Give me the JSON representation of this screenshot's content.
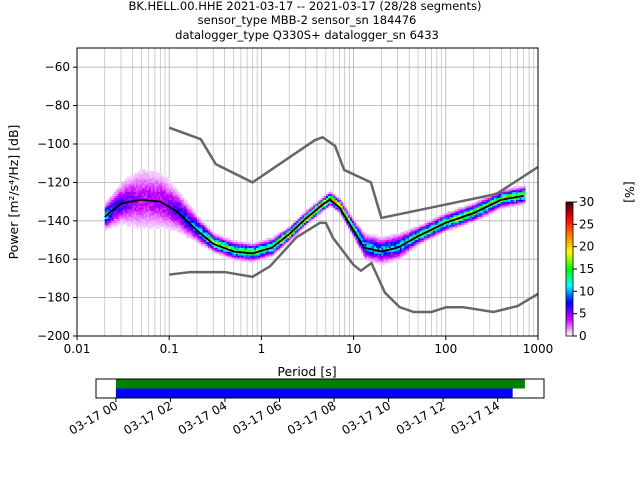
{
  "title": {
    "line1": "BK.HELL.00.HHE   2021-03-17 -- 2021-03-17  (28/28 segments)",
    "line2": "sensor_type MBB-2 sensor_sn 184476",
    "line3": "datalogger_type Q330S+ datalogger_sn 6433"
  },
  "chart_data": [
    {
      "type": "heatmap",
      "name": "ppsd",
      "xlabel": "Period [s]",
      "ylabel": "Power [m²/s⁴/Hz] [dB]",
      "xscale": "log",
      "xlim": [
        0.01,
        1000
      ],
      "ylim": [
        -200,
        -50
      ],
      "xticks": [
        0.01,
        0.1,
        1,
        10,
        100,
        1000
      ],
      "xtick_labels": [
        "0.01",
        "0.1",
        "1",
        "10",
        "100",
        "1000"
      ],
      "yticks": [
        -200,
        -180,
        -160,
        -140,
        -120,
        -100,
        -80,
        -60
      ],
      "ytick_labels": [
        "−200",
        "−180",
        "−160",
        "−140",
        "−120",
        "−100",
        "−80",
        "−60"
      ],
      "grid": true,
      "median": {
        "period": [
          0.02,
          0.03,
          0.05,
          0.08,
          0.12,
          0.2,
          0.3,
          0.5,
          0.8,
          1.3,
          2,
          3,
          4.5,
          5.5,
          7,
          10,
          13,
          20,
          30,
          50,
          100,
          200,
          400,
          700
        ],
        "db": [
          -138,
          -131,
          -129,
          -130,
          -135,
          -145,
          -152,
          -156,
          -157,
          -154,
          -147,
          -139,
          -132,
          -129,
          -133,
          -145,
          -154,
          -156,
          -154,
          -148,
          -141,
          -136,
          -129,
          -127
        ],
        "spread_db": [
          3,
          5,
          8,
          7,
          5,
          3,
          2,
          2,
          2,
          2,
          1.5,
          1.5,
          1.5,
          1.5,
          1.5,
          2,
          3,
          3,
          3,
          2,
          2,
          2,
          2,
          2
        ]
      },
      "nhnm": {
        "period": [
          0.1,
          0.22,
          0.32,
          0.8,
          3.8,
          4.6,
          6.3,
          7.9,
          15.4,
          20,
          354,
          1000
        ],
        "db": [
          -91.5,
          -97.5,
          -110.5,
          -120,
          -98,
          -96.5,
          -101,
          -113.5,
          -120,
          -138.5,
          -126,
          -112
        ]
      },
      "nlnm": {
        "period": [
          0.1,
          0.17,
          0.4,
          0.8,
          1.24,
          2.4,
          4.3,
          5,
          6,
          10,
          12,
          15.6,
          21.9,
          31.6,
          45,
          70,
          101,
          154,
          328,
          600,
          1000
        ],
        "db": [
          -168,
          -166.7,
          -166.7,
          -169.2,
          -163.7,
          -148.6,
          -141.1,
          -141.1,
          -149,
          -163,
          -166,
          -162,
          -177.5,
          -185,
          -187.5,
          -187.5,
          -185,
          -185,
          -187.5,
          -184.4,
          -178
        ]
      },
      "colorbar": {
        "label": "[%]",
        "range": [
          0,
          30
        ],
        "ticks": [
          "0",
          "5",
          "10",
          "15",
          "20",
          "25",
          "30"
        ],
        "colors": [
          "#ffffff",
          "#d000ff",
          "#0000ff",
          "#00ffff",
          "#00ff00",
          "#ffff00",
          "#ff8000",
          "#ff0000",
          "#400000"
        ]
      },
      "colors": {
        "noise_model": "#666666",
        "median": "#000000"
      }
    },
    {
      "type": "bar",
      "name": "data-coverage",
      "xlim_hours": [
        -0.73,
        15.7
      ],
      "xtick_labels": [
        "03-17 00",
        "03-17 02",
        "03-17 04",
        "03-17 06",
        "03-17 08",
        "03-17 10",
        "03-17 12",
        "03-17 14"
      ],
      "xtick_hours": [
        0,
        2,
        4,
        6,
        8,
        10,
        12,
        14
      ],
      "series": [
        {
          "name": "data-available",
          "start_hour": 0,
          "end_hour": 15.0,
          "color": "#008000"
        },
        {
          "name": "psd-used",
          "start_hour": 0,
          "end_hour": 14.55,
          "color": "#0000ff"
        }
      ]
    }
  ]
}
